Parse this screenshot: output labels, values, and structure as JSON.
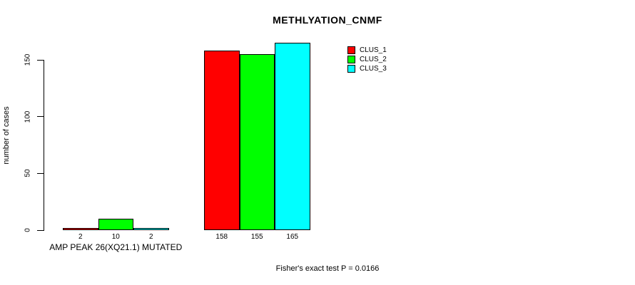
{
  "colors": {
    "background": "#ffffff",
    "axis": "#000000",
    "bar_border": "#000000",
    "text": "#000000"
  },
  "chart_data": {
    "type": "bar",
    "title": "METHLYATION_CNMF",
    "ylabel": "number of cases",
    "xlabel": "",
    "ylim": [
      0,
      165
    ],
    "yticks": [
      0,
      50,
      100,
      150
    ],
    "grid": false,
    "legend_position": "right",
    "series": [
      {
        "name": "CLUS_1",
        "color": "#ff0000"
      },
      {
        "name": "CLUS_2",
        "color": "#00ff00"
      },
      {
        "name": "CLUS_3",
        "color": "#00ffff"
      }
    ],
    "groups": [
      {
        "label": "AMP PEAK 26(XQ21.1) MUTATED",
        "values": [
          2,
          10,
          2
        ]
      },
      {
        "label": "",
        "values": [
          158,
          155,
          165
        ]
      }
    ],
    "annotation": "Fisher's exact test P = 0.0166"
  }
}
